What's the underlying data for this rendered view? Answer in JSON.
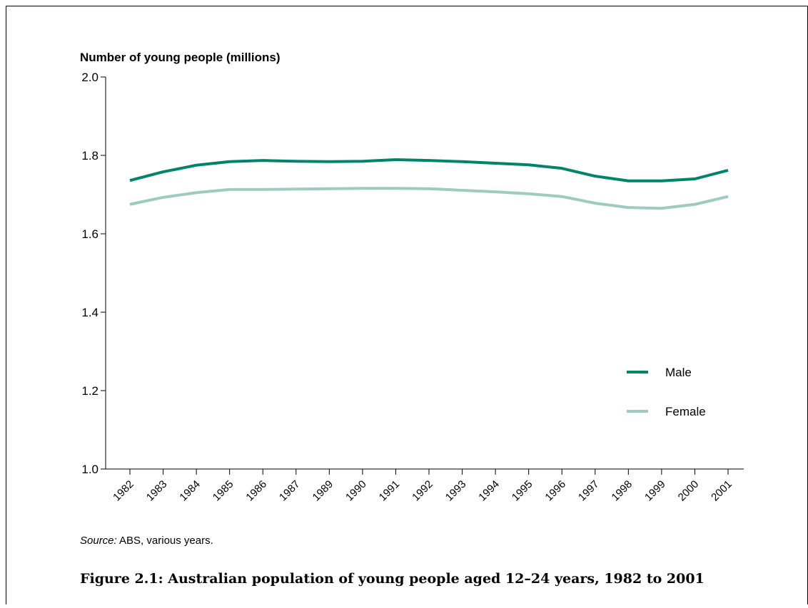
{
  "chart_data": {
    "type": "line",
    "y_axis_label": "Number of young people (millions)",
    "categories": [
      "1982",
      "1983",
      "1984",
      "1985",
      "1986",
      "1987",
      "1989",
      "1990",
      "1991",
      "1992",
      "1993",
      "1994",
      "1995",
      "1996",
      "1997",
      "1998",
      "1999",
      "2000",
      "2001"
    ],
    "series": [
      {
        "name": "Male",
        "color": "#00836b",
        "values": [
          1.736,
          1.758,
          1.775,
          1.784,
          1.787,
          1.785,
          1.784,
          1.785,
          1.789,
          1.787,
          1.784,
          1.78,
          1.776,
          1.767,
          1.747,
          1.735,
          1.735,
          1.74,
          1.762
        ]
      },
      {
        "name": "Female",
        "color": "#9dcbbf",
        "values": [
          1.675,
          1.693,
          1.705,
          1.713,
          1.713,
          1.714,
          1.715,
          1.716,
          1.716,
          1.715,
          1.711,
          1.707,
          1.702,
          1.695,
          1.678,
          1.667,
          1.665,
          1.675,
          1.695
        ]
      }
    ],
    "ylim": [
      1.0,
      2.0
    ],
    "yticks": [
      {
        "value": 1.0,
        "label": "1.0"
      },
      1.2,
      1.4,
      1.6,
      1.8,
      {
        "value": 2.0,
        "label": "2.0"
      }
    ],
    "source_label": "Source:",
    "source_text": "ABS, various years.",
    "caption": "Figure 2.1: Australian population of young people aged 12–24 years, 1982 to 2001"
  }
}
